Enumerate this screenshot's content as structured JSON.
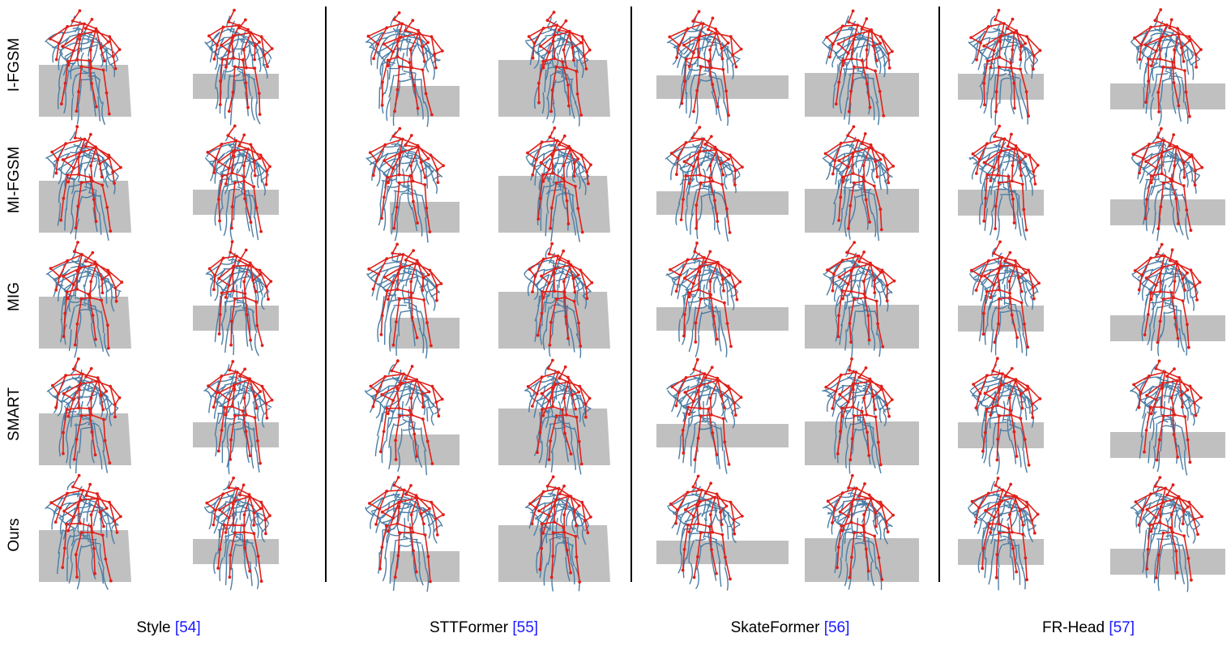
{
  "row_labels": [
    "I-FGSM",
    "MI-FGSM",
    "MIG",
    "SMART",
    "Ours"
  ],
  "column_labels": [
    {
      "model": "Style",
      "ref": "[54]"
    },
    {
      "model": "STTFormer",
      "ref": "[55]"
    },
    {
      "model": "SkateFormer",
      "ref": "[56]"
    },
    {
      "model": "FR-Head",
      "ref": "[57]"
    }
  ],
  "colors": {
    "skeleton": "#e0201a",
    "trajectory": "#4a7ea6",
    "floor": "#c0c0c0",
    "divider": "#000000"
  }
}
